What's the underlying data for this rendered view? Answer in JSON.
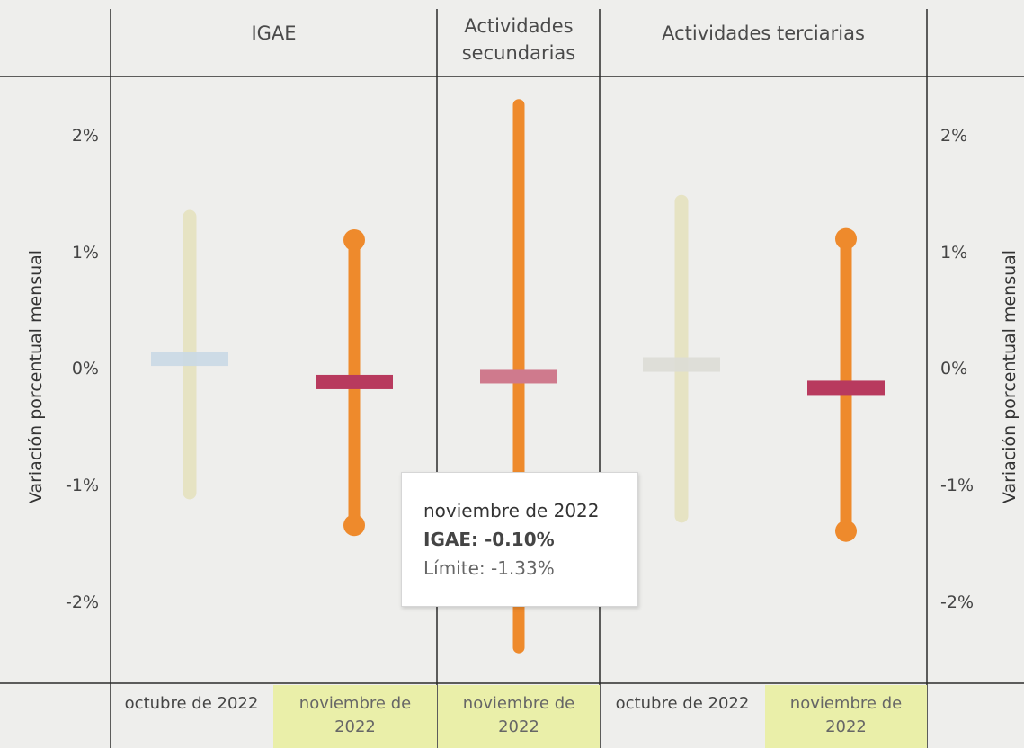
{
  "chart_data": {
    "type": "range-bar",
    "panels": [
      {
        "name": "IGAE",
        "categories": [
          {
            "label": "octubre de 2022",
            "value": 0.1,
            "low": -1.05,
            "high": 1.32,
            "highlighted": false,
            "muted": true
          },
          {
            "label": "noviembre de 2022",
            "value": -0.1,
            "low": -1.33,
            "high": 1.12,
            "highlighted": true,
            "muted": false
          }
        ]
      },
      {
        "name": "Actividades secundarias",
        "categories": [
          {
            "label": "noviembre de 2022",
            "value": -0.05,
            "low": -2.38,
            "high": 2.28,
            "highlighted": true,
            "muted": false,
            "value_muted": true
          }
        ]
      },
      {
        "name": "Actividades terciarias",
        "categories": [
          {
            "label": "octubre de 2022",
            "value": 0.05,
            "low": -1.25,
            "high": 1.45,
            "highlighted": false,
            "muted": true
          },
          {
            "label": "noviembre de 2022",
            "value": -0.15,
            "low": -1.38,
            "high": 1.13,
            "highlighted": true,
            "muted": false
          }
        ]
      }
    ],
    "ylabel": "Variación porcentual mensual",
    "yticks": [
      2,
      1,
      0,
      -1,
      -2
    ],
    "ytick_labels": [
      "2%",
      "1%",
      "0%",
      "-1%",
      "-2%"
    ],
    "ylim": [
      -2.65,
      2.5
    ]
  },
  "colors": {
    "range_active": "#ee8a2c",
    "range_muted": "#e6e3c3",
    "value_active": "#b83a5e",
    "value_active_light": "#cf7a8d",
    "value_muted_blue": "#c9d8e6",
    "value_muted_grey": "#dcdcd6",
    "highlight_bg": "#eaefa9"
  },
  "headers": {
    "igae": "IGAE",
    "secundarias": "Actividades\nsecundarias",
    "terciarias": "Actividades terciarias"
  },
  "categories_text": {
    "c1": "octubre de 2022",
    "c2": "noviembre de\n2022",
    "c3": "noviembre de\n2022",
    "c4": "octubre de 2022",
    "c5": "noviembre de\n2022"
  },
  "tooltip": {
    "title": "noviembre de 2022",
    "line1": "IGAE: -0.10%",
    "line2": "Límite: -1.33%"
  }
}
